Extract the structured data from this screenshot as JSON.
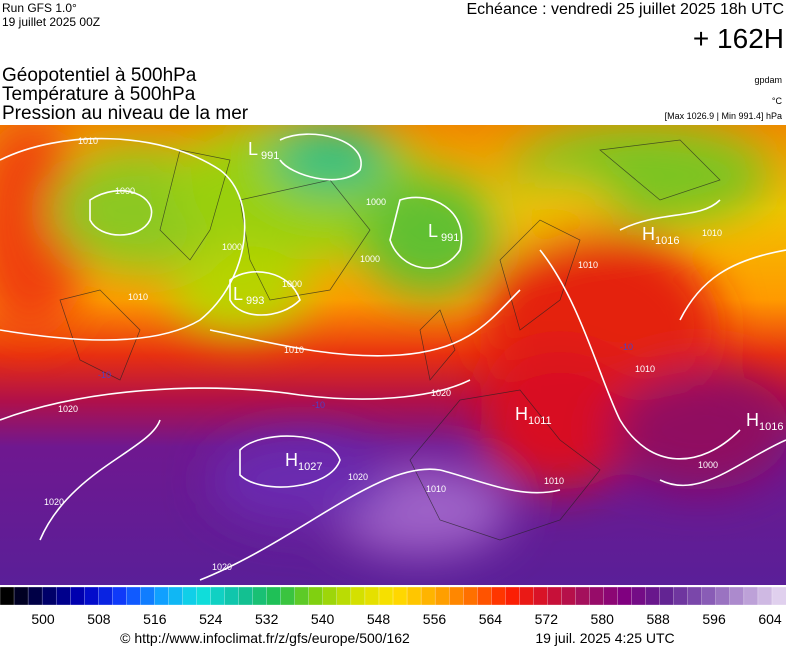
{
  "header": {
    "run": "Run GFS 1.0°",
    "run_date": "19 juillet 2025 00Z",
    "valid": "Echéance : vendredi 25 juillet 2025 18h UTC",
    "lead": "+ 162H"
  },
  "fields": [
    "Géopotentiel à 500hPa",
    "Température à 500hPa",
    "Pression au niveau de la mer"
  ],
  "units": {
    "geopotential": "gpdam",
    "temperature": "°C",
    "pressure": "[Max 1026.9 | Min 991.4] hPa"
  },
  "map": {
    "centers": [
      {
        "type": "L",
        "value": "991"
      },
      {
        "type": "L",
        "value": "991"
      },
      {
        "type": "L",
        "value": "993"
      },
      {
        "type": "H",
        "value": "1027"
      },
      {
        "type": "H",
        "value": "1016"
      },
      {
        "type": "H",
        "value": "1011"
      },
      {
        "type": "H",
        "value": "1016"
      }
    ],
    "isobar_labels": [
      "1010",
      "1000",
      "1010",
      "1000",
      "1000",
      "1000",
      "1000",
      "1010",
      "1020",
      "1020",
      "1020",
      "1020",
      "1010",
      "1020",
      "1010",
      "1010",
      "1010",
      "1000",
      "1010"
    ],
    "temperature_labels": [
      "-10",
      "-10",
      "-10"
    ]
  },
  "colorbar": {
    "ticks": [
      500,
      508,
      516,
      524,
      532,
      540,
      548,
      556,
      564,
      572,
      580,
      588,
      596,
      604
    ]
  },
  "footer": {
    "source": "© http://www.infoclimat.fr/z/gfs/europe/500/162",
    "timestamp": "19 juil. 2025  4:25 UTC"
  }
}
